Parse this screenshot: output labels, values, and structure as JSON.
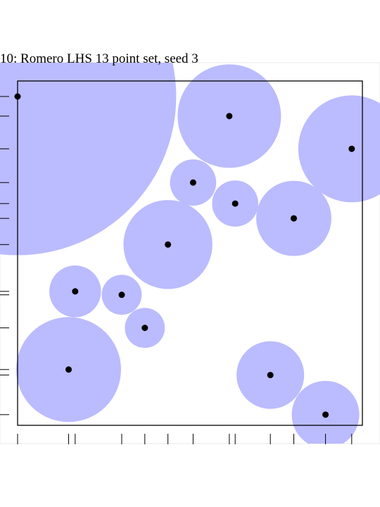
{
  "chart_data": {
    "type": "scatter",
    "title": "10: Romero LHS 13 point set, seed 3",
    "xlabel": "",
    "ylabel": "",
    "xlim": [
      0,
      1
    ],
    "ylim": [
      0,
      1
    ],
    "grid": false,
    "tick_labels": false,
    "colors": {
      "circle_fill": "#bbbbff",
      "point": "#000000",
      "frame": "#000000",
      "outer_box": "#e8e8e8"
    },
    "points": [
      {
        "x": 0.0,
        "y": 0.955,
        "r": 0.46
      },
      {
        "x": 0.614,
        "y": 0.898,
        "r": 0.15
      },
      {
        "x": 0.969,
        "y": 0.803,
        "r": 0.155
      },
      {
        "x": 0.509,
        "y": 0.705,
        "r": 0.067
      },
      {
        "x": 0.631,
        "y": 0.644,
        "r": 0.067
      },
      {
        "x": 0.801,
        "y": 0.601,
        "r": 0.109
      },
      {
        "x": 0.436,
        "y": 0.525,
        "r": 0.129
      },
      {
        "x": 0.167,
        "y": 0.389,
        "r": 0.075
      },
      {
        "x": 0.302,
        "y": 0.379,
        "r": 0.058
      },
      {
        "x": 0.369,
        "y": 0.283,
        "r": 0.058
      },
      {
        "x": 0.148,
        "y": 0.162,
        "r": 0.152
      },
      {
        "x": 0.733,
        "y": 0.146,
        "r": 0.098
      },
      {
        "x": 0.893,
        "y": 0.031,
        "r": 0.098
      }
    ]
  }
}
